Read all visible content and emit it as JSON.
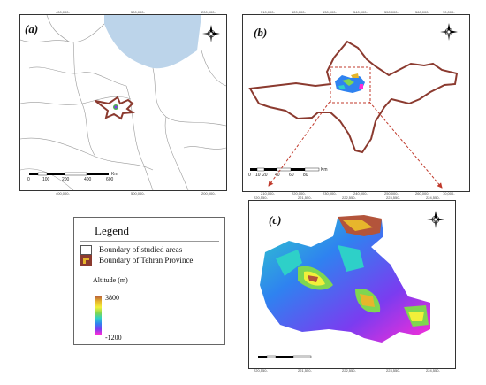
{
  "panels": {
    "a": {
      "label": "(a)",
      "ticks_top": [
        "400,000-",
        "500,000-",
        "200,000-"
      ],
      "ticks_bottom": [
        "400,000-",
        "500,000-",
        "200,000-"
      ],
      "scale": [
        "0",
        "100",
        "200",
        "400",
        "600"
      ],
      "scale_unit": "Km"
    },
    "b": {
      "label": "(b)",
      "ticks_top": [
        "510,000-",
        "520,000-",
        "530,000-",
        "540,000-",
        "550,000-",
        "560,000-",
        "70,000-"
      ],
      "ticks_bottom": [
        "210,000-",
        "220,000-",
        "230,000-",
        "240,000-",
        "250,000-",
        "260,000-",
        "70,000-"
      ],
      "scale": [
        "0",
        "10",
        "20",
        "40",
        "60",
        "80"
      ],
      "scale_unit": "Km"
    },
    "c": {
      "label": "(c)",
      "ticks_top": [
        "220,550-",
        "221,550-",
        "222,550-",
        "223,550-",
        "224,550-"
      ],
      "ticks_bottom": [
        "220,550-",
        "221,550-",
        "222,550-",
        "223,550-",
        "224,550-"
      ]
    }
  },
  "legend": {
    "title": "Legend",
    "items": [
      {
        "label": "Boundary of studied areas"
      },
      {
        "label": "Boundary of Tehran Province"
      }
    ],
    "altitude_title": "Altitude (m)",
    "altitude_max": "3800",
    "altitude_min": "-1200"
  },
  "north_arrow": {
    "n": "N",
    "s": "S",
    "e": "E",
    "w": "W"
  },
  "colors": {
    "boundary": "#8b3a2f",
    "water": "#bcd4ea",
    "arrow": "#c0392b"
  }
}
